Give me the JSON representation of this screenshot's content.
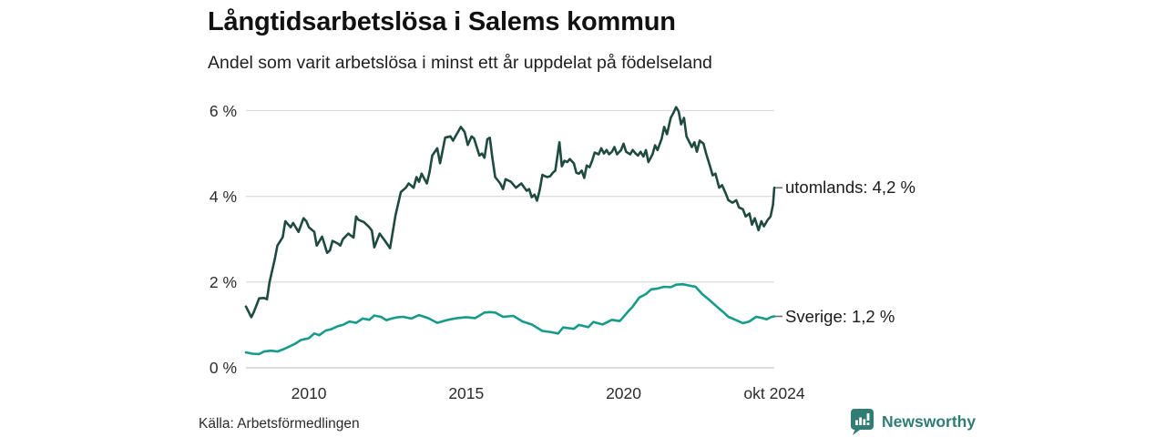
{
  "footer": {
    "source": "Källa: Arbetsförmedlingen",
    "brand": "Newsworthy"
  },
  "colors": {
    "series_utomlands": "#1e4a40",
    "series_sverige": "#169b8b",
    "gridline": "#dddddd",
    "zero_line": "#c8c8c8",
    "connector": "#6e6e6e",
    "title_text": "#111111",
    "tick_text": "#2b2b2b",
    "brand_teal": "#2f7d74",
    "background": "#ffffff"
  },
  "chart_data": {
    "type": "line",
    "title": "Långtidsarbetslösa i Salems kommun",
    "subtitle": "Andel som varit arbetslösa i minst ett år uppdelat på födelseland",
    "grid": "horizontal",
    "legend": "end-of-line labels",
    "x_axis": {
      "range": [
        2008,
        2024.79
      ],
      "ticks": [
        {
          "t": 2010,
          "label": "2010"
        },
        {
          "t": 2015,
          "label": "2015"
        },
        {
          "t": 2020,
          "label": "2020"
        },
        {
          "t": 2024.79,
          "label": "okt 2024"
        }
      ]
    },
    "y_axis": {
      "range": [
        0,
        6.3
      ],
      "unit": "%",
      "ticks": [
        {
          "v": 0,
          "label": "0 %"
        },
        {
          "v": 2,
          "label": "2 %"
        },
        {
          "v": 4,
          "label": "4 %"
        },
        {
          "v": 6,
          "label": "6 %"
        }
      ]
    },
    "series": [
      {
        "name": "utomlands",
        "end_label": "utomlands: 4,2 %",
        "last_value": 4.2,
        "color": "#1e4a40",
        "points": [
          [
            2008.0,
            1.43
          ],
          [
            2008.17,
            1.18
          ],
          [
            2008.25,
            1.3
          ],
          [
            2008.42,
            1.62
          ],
          [
            2008.58,
            1.63
          ],
          [
            2008.67,
            1.6
          ],
          [
            2008.75,
            2.0
          ],
          [
            2008.92,
            2.55
          ],
          [
            2009.0,
            2.85
          ],
          [
            2009.17,
            3.05
          ],
          [
            2009.25,
            3.42
          ],
          [
            2009.42,
            3.28
          ],
          [
            2009.5,
            3.38
          ],
          [
            2009.67,
            3.17
          ],
          [
            2009.83,
            3.49
          ],
          [
            2009.92,
            3.42
          ],
          [
            2010.0,
            3.28
          ],
          [
            2010.17,
            3.17
          ],
          [
            2010.25,
            2.85
          ],
          [
            2010.42,
            3.06
          ],
          [
            2010.58,
            2.68
          ],
          [
            2010.67,
            2.74
          ],
          [
            2010.75,
            2.96
          ],
          [
            2010.92,
            2.9
          ],
          [
            2011.0,
            2.85
          ],
          [
            2011.08,
            3.0
          ],
          [
            2011.25,
            3.13
          ],
          [
            2011.42,
            3.04
          ],
          [
            2011.5,
            3.53
          ],
          [
            2011.58,
            3.45
          ],
          [
            2011.75,
            3.4
          ],
          [
            2011.92,
            3.28
          ],
          [
            2012.0,
            3.2
          ],
          [
            2012.08,
            2.81
          ],
          [
            2012.25,
            3.13
          ],
          [
            2012.42,
            2.96
          ],
          [
            2012.58,
            2.79
          ],
          [
            2012.75,
            3.55
          ],
          [
            2012.92,
            4.1
          ],
          [
            2013.08,
            4.2
          ],
          [
            2013.17,
            4.3
          ],
          [
            2013.33,
            4.2
          ],
          [
            2013.42,
            4.45
          ],
          [
            2013.5,
            4.34
          ],
          [
            2013.58,
            4.53
          ],
          [
            2013.75,
            4.3
          ],
          [
            2013.83,
            4.55
          ],
          [
            2013.92,
            4.95
          ],
          [
            2014.08,
            5.12
          ],
          [
            2014.17,
            4.77
          ],
          [
            2014.33,
            5.37
          ],
          [
            2014.5,
            5.4
          ],
          [
            2014.58,
            5.3
          ],
          [
            2014.83,
            5.62
          ],
          [
            2014.95,
            5.5
          ],
          [
            2015.05,
            5.2
          ],
          [
            2015.17,
            5.4
          ],
          [
            2015.25,
            5.35
          ],
          [
            2015.42,
            4.95
          ],
          [
            2015.5,
            5.0
          ],
          [
            2015.58,
            4.9
          ],
          [
            2015.67,
            5.33
          ],
          [
            2015.75,
            5.37
          ],
          [
            2015.83,
            4.9
          ],
          [
            2015.92,
            4.45
          ],
          [
            2016.08,
            4.3
          ],
          [
            2016.17,
            4.17
          ],
          [
            2016.25,
            4.4
          ],
          [
            2016.42,
            4.34
          ],
          [
            2016.58,
            4.2
          ],
          [
            2016.75,
            4.3
          ],
          [
            2016.92,
            4.13
          ],
          [
            2017.0,
            4.17
          ],
          [
            2017.08,
            3.98
          ],
          [
            2017.17,
            4.04
          ],
          [
            2017.25,
            3.9
          ],
          [
            2017.33,
            4.13
          ],
          [
            2017.42,
            4.5
          ],
          [
            2017.5,
            4.47
          ],
          [
            2017.58,
            4.45
          ],
          [
            2017.67,
            4.47
          ],
          [
            2017.75,
            4.55
          ],
          [
            2017.83,
            4.6
          ],
          [
            2017.96,
            5.26
          ],
          [
            2018.04,
            4.7
          ],
          [
            2018.12,
            4.83
          ],
          [
            2018.21,
            4.8
          ],
          [
            2018.29,
            4.87
          ],
          [
            2018.42,
            4.77
          ],
          [
            2018.5,
            4.55
          ],
          [
            2018.58,
            4.53
          ],
          [
            2018.67,
            4.6
          ],
          [
            2018.75,
            4.43
          ],
          [
            2018.83,
            4.72
          ],
          [
            2018.92,
            4.68
          ],
          [
            2019.0,
            4.83
          ],
          [
            2019.08,
            5.02
          ],
          [
            2019.21,
            4.98
          ],
          [
            2019.29,
            5.12
          ],
          [
            2019.38,
            5.0
          ],
          [
            2019.46,
            5.08
          ],
          [
            2019.54,
            4.98
          ],
          [
            2019.63,
            5.04
          ],
          [
            2019.71,
            5.15
          ],
          [
            2019.79,
            4.98
          ],
          [
            2019.92,
            5.08
          ],
          [
            2020.0,
            5.23
          ],
          [
            2020.08,
            5.04
          ],
          [
            2020.21,
            4.98
          ],
          [
            2020.29,
            5.08
          ],
          [
            2020.38,
            5.0
          ],
          [
            2020.46,
            4.95
          ],
          [
            2020.54,
            5.04
          ],
          [
            2020.63,
            4.93
          ],
          [
            2020.71,
            5.08
          ],
          [
            2020.79,
            4.8
          ],
          [
            2020.92,
            4.98
          ],
          [
            2021.0,
            5.19
          ],
          [
            2021.08,
            5.08
          ],
          [
            2021.21,
            5.34
          ],
          [
            2021.29,
            5.62
          ],
          [
            2021.38,
            5.45
          ],
          [
            2021.5,
            5.83
          ],
          [
            2021.58,
            5.94
          ],
          [
            2021.67,
            6.08
          ],
          [
            2021.75,
            5.98
          ],
          [
            2021.83,
            5.68
          ],
          [
            2021.92,
            5.83
          ],
          [
            2022.0,
            5.4
          ],
          [
            2022.17,
            5.15
          ],
          [
            2022.25,
            5.26
          ],
          [
            2022.33,
            5.04
          ],
          [
            2022.42,
            5.3
          ],
          [
            2022.54,
            5.23
          ],
          [
            2022.63,
            4.98
          ],
          [
            2022.75,
            4.7
          ],
          [
            2022.83,
            4.49
          ],
          [
            2022.92,
            4.53
          ],
          [
            2023.04,
            4.2
          ],
          [
            2023.13,
            4.26
          ],
          [
            2023.25,
            4.06
          ],
          [
            2023.33,
            3.91
          ],
          [
            2023.46,
            3.85
          ],
          [
            2023.58,
            3.91
          ],
          [
            2023.67,
            3.74
          ],
          [
            2023.79,
            3.7
          ],
          [
            2023.88,
            3.53
          ],
          [
            2024.0,
            3.6
          ],
          [
            2024.08,
            3.34
          ],
          [
            2024.17,
            3.49
          ],
          [
            2024.29,
            3.21
          ],
          [
            2024.38,
            3.42
          ],
          [
            2024.46,
            3.3
          ],
          [
            2024.58,
            3.45
          ],
          [
            2024.67,
            3.53
          ],
          [
            2024.75,
            3.81
          ],
          [
            2024.79,
            4.2
          ]
        ]
      },
      {
        "name": "Sverige",
        "end_label": "Sverige: 1,2 %",
        "last_value": 1.2,
        "color": "#169b8b",
        "points": [
          [
            2008.0,
            0.36
          ],
          [
            2008.21,
            0.33
          ],
          [
            2008.42,
            0.32
          ],
          [
            2008.58,
            0.38
          ],
          [
            2008.79,
            0.4
          ],
          [
            2009.0,
            0.38
          ],
          [
            2009.21,
            0.44
          ],
          [
            2009.42,
            0.51
          ],
          [
            2009.58,
            0.57
          ],
          [
            2009.75,
            0.65
          ],
          [
            2010.0,
            0.69
          ],
          [
            2010.17,
            0.8
          ],
          [
            2010.33,
            0.76
          ],
          [
            2010.54,
            0.87
          ],
          [
            2010.71,
            0.9
          ],
          [
            2010.92,
            0.97
          ],
          [
            2011.08,
            1.0
          ],
          [
            2011.29,
            1.08
          ],
          [
            2011.5,
            1.05
          ],
          [
            2011.71,
            1.15
          ],
          [
            2011.92,
            1.12
          ],
          [
            2012.08,
            1.22
          ],
          [
            2012.29,
            1.19
          ],
          [
            2012.46,
            1.11
          ],
          [
            2012.63,
            1.15
          ],
          [
            2012.83,
            1.18
          ],
          [
            2013.0,
            1.19
          ],
          [
            2013.25,
            1.15
          ],
          [
            2013.5,
            1.23
          ],
          [
            2013.79,
            1.16
          ],
          [
            2014.08,
            1.05
          ],
          [
            2014.42,
            1.12
          ],
          [
            2014.71,
            1.16
          ],
          [
            2015.0,
            1.18
          ],
          [
            2015.29,
            1.16
          ],
          [
            2015.58,
            1.29
          ],
          [
            2015.75,
            1.3
          ],
          [
            2015.92,
            1.29
          ],
          [
            2016.17,
            1.19
          ],
          [
            2016.5,
            1.21
          ],
          [
            2016.79,
            1.08
          ],
          [
            2017.08,
            1.01
          ],
          [
            2017.42,
            0.86
          ],
          [
            2017.71,
            0.83
          ],
          [
            2017.92,
            0.8
          ],
          [
            2018.08,
            0.94
          ],
          [
            2018.42,
            0.91
          ],
          [
            2018.58,
            1.0
          ],
          [
            2018.88,
            0.95
          ],
          [
            2019.04,
            1.07
          ],
          [
            2019.33,
            1.01
          ],
          [
            2019.63,
            1.12
          ],
          [
            2019.88,
            1.09
          ],
          [
            2020.13,
            1.3
          ],
          [
            2020.29,
            1.43
          ],
          [
            2020.5,
            1.64
          ],
          [
            2020.71,
            1.72
          ],
          [
            2020.88,
            1.83
          ],
          [
            2021.08,
            1.85
          ],
          [
            2021.29,
            1.89
          ],
          [
            2021.5,
            1.88
          ],
          [
            2021.67,
            1.94
          ],
          [
            2021.88,
            1.95
          ],
          [
            2022.08,
            1.92
          ],
          [
            2022.29,
            1.89
          ],
          [
            2022.5,
            1.72
          ],
          [
            2022.75,
            1.57
          ],
          [
            2022.96,
            1.43
          ],
          [
            2023.17,
            1.3
          ],
          [
            2023.33,
            1.19
          ],
          [
            2023.58,
            1.11
          ],
          [
            2023.79,
            1.04
          ],
          [
            2024.0,
            1.08
          ],
          [
            2024.21,
            1.19
          ],
          [
            2024.42,
            1.16
          ],
          [
            2024.54,
            1.13
          ],
          [
            2024.71,
            1.19
          ],
          [
            2024.79,
            1.2
          ]
        ]
      }
    ]
  }
}
